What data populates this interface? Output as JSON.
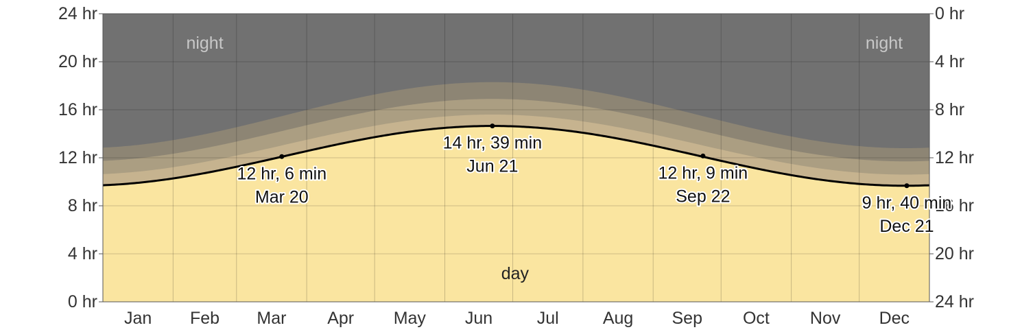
{
  "chart_data": {
    "type": "area",
    "x_axis": {
      "categories": [
        "Jan",
        "Feb",
        "Mar",
        "Apr",
        "May",
        "Jun",
        "Jul",
        "Aug",
        "Sep",
        "Oct",
        "Nov",
        "Dec"
      ]
    },
    "y_left": {
      "ylim": [
        0,
        24
      ],
      "ticks": [
        0,
        4,
        8,
        12,
        16,
        20,
        24
      ],
      "tick_labels": [
        "0 hr",
        "4 hr",
        "8 hr",
        "12 hr",
        "16 hr",
        "20 hr",
        "24 hr"
      ]
    },
    "y_right": {
      "ylim": [
        24,
        0
      ],
      "ticks": [
        24,
        20,
        16,
        12,
        8,
        4,
        0
      ],
      "tick_labels": [
        "24 hr",
        "20 hr",
        "16 hr",
        "12 hr",
        "8 hr",
        "4 hr",
        "0 hr"
      ]
    },
    "grid": true,
    "series": [
      {
        "role": "daylight",
        "min_hours": 9.67,
        "max_hours": 14.65,
        "min_day_of_year": 355,
        "max_day_of_year": 172
      },
      {
        "role": "twilight-civil",
        "min_hours": 10.6,
        "max_hours": 15.6
      },
      {
        "role": "twilight-nautical",
        "min_hours": 11.7,
        "max_hours": 16.9
      },
      {
        "role": "twilight-astronomical",
        "min_hours": 12.8,
        "max_hours": 18.3
      }
    ],
    "annotations": [
      {
        "day_of_year": 79,
        "hours": 12.1,
        "line1": "12 hr, 6 min",
        "line2": "Mar 20",
        "anchor": "below"
      },
      {
        "day_of_year": 172,
        "hours": 14.65,
        "line1": "14 hr, 39 min",
        "line2": "Jun 21",
        "anchor": "below"
      },
      {
        "day_of_year": 265,
        "hours": 12.15,
        "line1": "12 hr, 9 min",
        "line2": "Sep 22",
        "anchor": "below"
      },
      {
        "day_of_year": 355,
        "hours": 9.67,
        "line1": "9 hr, 40 min",
        "line2": "Dec 21",
        "anchor": "below"
      }
    ],
    "region_labels": {
      "night": "night",
      "day": "day"
    },
    "colors": {
      "night": "#717171",
      "astronomical": "#8d8574",
      "nautical": "#ab9e82",
      "civil": "#c6b38f",
      "day": "#fae5a0",
      "curve": "#000000",
      "grid": "#000000"
    }
  }
}
